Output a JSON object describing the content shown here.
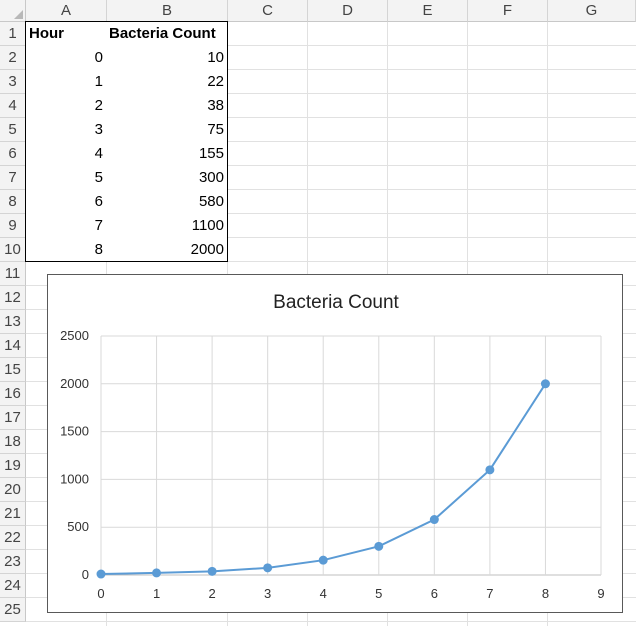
{
  "columns": [
    "A",
    "B",
    "C",
    "D",
    "E",
    "F",
    "G"
  ],
  "rows": [
    "1",
    "2",
    "3",
    "4",
    "5",
    "6",
    "7",
    "8",
    "9",
    "10",
    "11",
    "12",
    "13",
    "14",
    "15",
    "16",
    "17",
    "18",
    "19",
    "20",
    "21",
    "22",
    "23",
    "24",
    "25"
  ],
  "table": {
    "headers": [
      "Hour",
      "Bacteria Count"
    ],
    "rows": [
      [
        "0",
        "10"
      ],
      [
        "1",
        "22"
      ],
      [
        "2",
        "38"
      ],
      [
        "3",
        "75"
      ],
      [
        "4",
        "155"
      ],
      [
        "5",
        "300"
      ],
      [
        "6",
        "580"
      ],
      [
        "7",
        "1100"
      ],
      [
        "8",
        "2000"
      ]
    ]
  },
  "chart_data": {
    "type": "scatter",
    "title": "Bacteria Count",
    "xlabel": "",
    "ylabel": "",
    "x": [
      0,
      1,
      2,
      3,
      4,
      5,
      6,
      7,
      8
    ],
    "series": [
      {
        "values": [
          10,
          22,
          38,
          75,
          155,
          300,
          580,
          1100,
          2000
        ],
        "color": "#5b9bd5"
      }
    ],
    "xlim": [
      0,
      9
    ],
    "ylim": [
      0,
      2500
    ],
    "x_ticks": [
      "0",
      "1",
      "2",
      "3",
      "4",
      "5",
      "6",
      "7",
      "8",
      "9"
    ],
    "y_ticks": [
      "0",
      "500",
      "1000",
      "1500",
      "2000",
      "2500"
    ],
    "grid": true,
    "legend": "none",
    "line_connected": true,
    "markers": true
  }
}
